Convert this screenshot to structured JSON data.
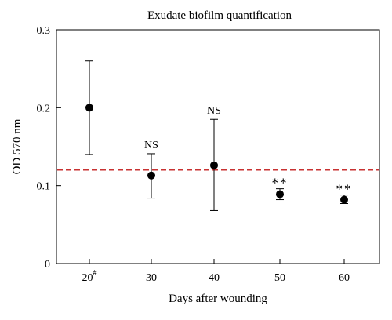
{
  "chart_data": {
    "type": "scatter",
    "title": "Exudate biofilm quantification",
    "xlabel": "Days after wounding",
    "ylabel": "OD 570 nm",
    "categories": [
      {
        "label": "20",
        "sup": "#"
      },
      {
        "label": "30",
        "sup": ""
      },
      {
        "label": "40",
        "sup": ""
      },
      {
        "label": "50",
        "sup": ""
      },
      {
        "label": "60",
        "sup": ""
      }
    ],
    "points": [
      {
        "y": 0.2,
        "err_low": 0.14,
        "err_high": 0.26,
        "annotation": ""
      },
      {
        "y": 0.113,
        "err_low": 0.084,
        "err_high": 0.141,
        "annotation": "NS"
      },
      {
        "y": 0.126,
        "err_low": 0.068,
        "err_high": 0.185,
        "annotation": "NS"
      },
      {
        "y": 0.089,
        "err_low": 0.082,
        "err_high": 0.096,
        "annotation": "**"
      },
      {
        "y": 0.082,
        "err_low": 0.077,
        "err_high": 0.088,
        "annotation": "**"
      }
    ],
    "ylim": [
      0,
      0.3
    ],
    "yticks": [
      "0",
      "0.1",
      "0.2",
      "0.3"
    ],
    "reference_line": {
      "y": 0.12,
      "color": "#c83232",
      "style": "dashed"
    },
    "marker_color": "#000000",
    "grid": false
  }
}
